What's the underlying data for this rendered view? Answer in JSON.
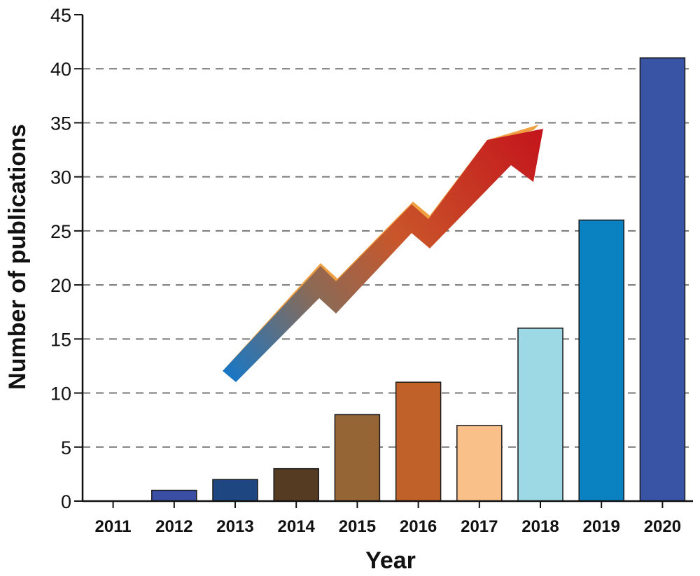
{
  "chart_data": {
    "type": "bar",
    "title": "",
    "xlabel": "Year",
    "ylabel": "Number of publications",
    "categories": [
      "2011",
      "2012",
      "2013",
      "2014",
      "2015",
      "2016",
      "2017",
      "2018",
      "2019",
      "2020"
    ],
    "values": [
      0,
      1,
      2,
      3,
      8,
      11,
      7,
      16,
      26,
      41
    ],
    "bar_colors": [
      "#3a4fa3",
      "#3a4fa3",
      "#1e4680",
      "#553b22",
      "#956535",
      "#c0612a",
      "#f9c089",
      "#9dd8e5",
      "#0a82c2",
      "#3a54a5"
    ],
    "ylim": [
      0,
      45
    ],
    "yticks": [
      0,
      5,
      10,
      15,
      20,
      25,
      30,
      35,
      40,
      45
    ],
    "grid": "horizontal dashed",
    "annotation": "upward trend arrow from 2013 to 2018"
  }
}
